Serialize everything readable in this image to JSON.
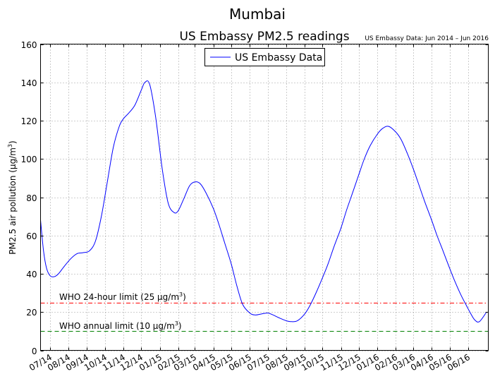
{
  "colors": {
    "series": "#0000ff",
    "who_24h": "#ff0000",
    "who_annual": "#008000",
    "grid": "#808080",
    "axes": "#000000"
  },
  "chart_data": {
    "type": "line",
    "title": "Mumbai",
    "subtitle": "US Embassy PM2.5 readings",
    "note": "US Embassy Data: Jun 2014 – Jun 2016",
    "xlabel": "",
    "ylabel_main": "PM2.5 air pollution (µg/m",
    "ylabel_sup": "3",
    "ylabel_tail": ")",
    "ylim": [
      0,
      160
    ],
    "yticks": [
      0,
      20,
      40,
      60,
      80,
      100,
      120,
      140,
      160
    ],
    "xlim": [
      "2014-06-15",
      "2016-07-05"
    ],
    "xticks": [
      "2014-07-01",
      "2014-08-01",
      "2014-09-01",
      "2014-10-01",
      "2014-11-01",
      "2014-12-01",
      "2015-01-01",
      "2015-02-01",
      "2015-03-01",
      "2015-04-01",
      "2015-05-01",
      "2015-06-01",
      "2015-07-01",
      "2015-08-01",
      "2015-09-01",
      "2015-10-01",
      "2015-11-01",
      "2015-12-01",
      "2016-01-01",
      "2016-02-01",
      "2016-03-01",
      "2016-04-01",
      "2016-05-01",
      "2016-06-01"
    ],
    "xtick_labels": [
      "07/14",
      "08/14",
      "09/14",
      "10/14",
      "11/14",
      "12/14",
      "01/15",
      "02/15",
      "03/15",
      "04/15",
      "05/15",
      "06/15",
      "07/15",
      "08/15",
      "09/15",
      "10/15",
      "11/15",
      "12/15",
      "01/16",
      "02/16",
      "03/16",
      "04/16",
      "05/16",
      "06/16"
    ],
    "grid": true,
    "legend_position": "top-center",
    "series": [
      {
        "name": "US Embassy Data",
        "x": [
          "2014-06-15",
          "2014-06-20",
          "2014-06-25",
          "2014-07-01",
          "2014-07-08",
          "2014-07-15",
          "2014-07-25",
          "2014-08-05",
          "2014-08-15",
          "2014-08-25",
          "2014-09-05",
          "2014-09-15",
          "2014-09-25",
          "2014-10-05",
          "2014-10-15",
          "2014-10-25",
          "2014-11-01",
          "2014-11-10",
          "2014-11-20",
          "2014-12-01",
          "2014-12-07",
          "2014-12-15",
          "2014-12-25",
          "2015-01-05",
          "2015-01-15",
          "2015-01-25",
          "2015-02-01",
          "2015-02-10",
          "2015-02-20",
          "2015-03-01",
          "2015-03-10",
          "2015-03-20",
          "2015-04-01",
          "2015-04-10",
          "2015-04-20",
          "2015-05-01",
          "2015-05-10",
          "2015-05-20",
          "2015-06-01",
          "2015-06-10",
          "2015-06-20",
          "2015-07-01",
          "2015-07-10",
          "2015-07-20",
          "2015-08-01",
          "2015-08-10",
          "2015-08-20",
          "2015-09-01",
          "2015-09-10",
          "2015-09-20",
          "2015-10-01",
          "2015-10-10",
          "2015-10-20",
          "2015-11-01",
          "2015-11-10",
          "2015-11-20",
          "2015-12-01",
          "2015-12-10",
          "2015-12-20",
          "2016-01-01",
          "2016-01-10",
          "2016-01-20",
          "2016-02-01",
          "2016-02-10",
          "2016-02-20",
          "2016-03-01",
          "2016-03-10",
          "2016-03-20",
          "2016-04-01",
          "2016-04-10",
          "2016-04-20",
          "2016-05-01",
          "2016-05-10",
          "2016-05-20",
          "2016-05-30",
          "2016-06-05",
          "2016-06-12",
          "2016-06-20",
          "2016-07-02"
        ],
        "y": [
          68,
          52,
          43,
          39,
          38.5,
          40,
          44,
          48,
          50.5,
          51,
          52,
          57,
          70,
          88,
          106,
          117,
          121,
          124,
          128,
          136,
          140,
          139,
          122,
          95,
          77,
          72,
          73,
          79,
          86,
          88,
          87,
          82,
          74,
          66,
          56,
          45,
          34,
          24,
          19.5,
          18.5,
          19,
          19.5,
          18.5,
          17,
          15.5,
          15,
          15.5,
          19,
          23.5,
          30,
          38,
          45,
          54,
          64,
          73,
          82,
          92,
          100,
          107,
          113,
          116,
          117,
          114,
          110,
          103,
          95,
          87,
          78,
          68,
          60,
          52,
          43,
          36,
          29,
          23,
          19.5,
          16,
          15,
          20
        ]
      }
    ],
    "reference_lines": [
      {
        "label_main": "WHO 24-hour limit (25 µg/m",
        "label_sup": "3",
        "label_tail": ")",
        "y": 25,
        "style": "dashdot"
      },
      {
        "label_main": "WHO annual limit (10 µg/m",
        "label_sup": "3",
        "label_tail": ")",
        "y": 10,
        "style": "dashed"
      }
    ]
  }
}
